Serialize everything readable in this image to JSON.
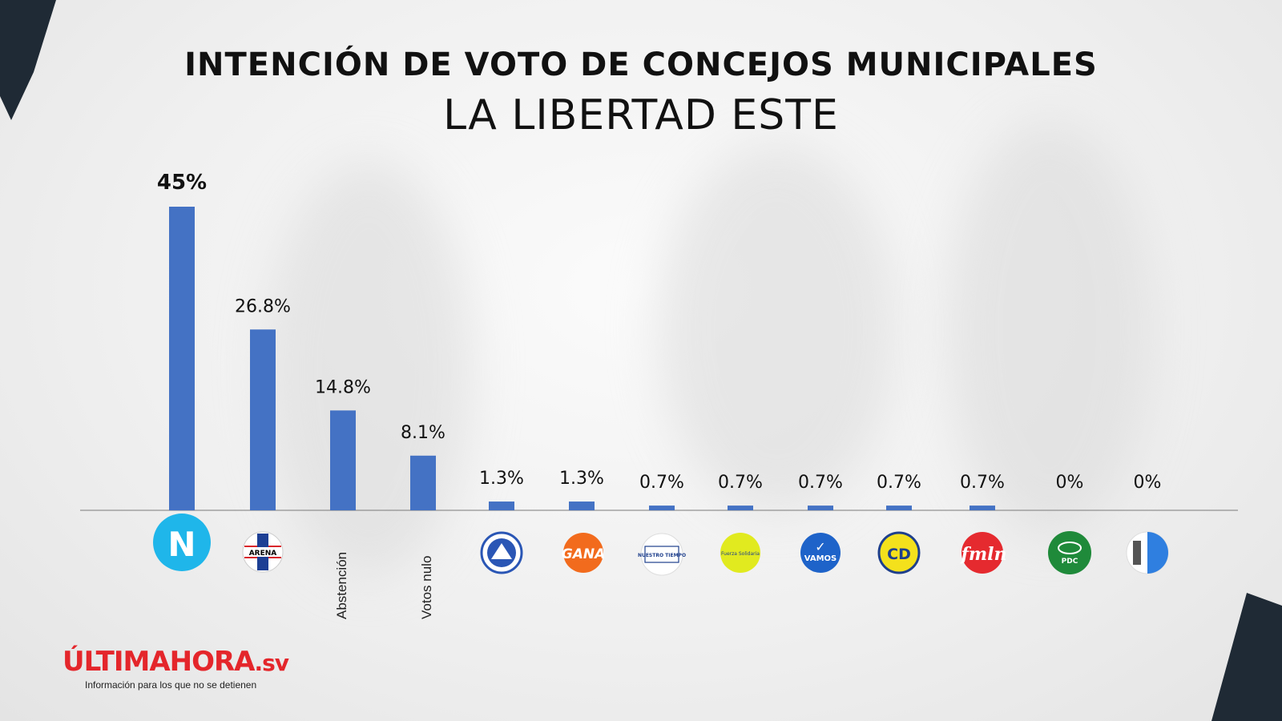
{
  "chart_data": {
    "type": "bar",
    "title": "INTENCIÓN DE VOTO DE CONCEJOS MUNICIPALES",
    "subtitle": "LA LIBERTAD ESTE",
    "categories": [
      "N",
      "ARENA",
      "Abstención",
      "Votos nulo",
      "PCN",
      "GANA",
      "NUESTRO TIEMPO",
      "Fuerza Solidaria",
      "VAMOS",
      "CD",
      "FMLN",
      "PDC",
      "DS"
    ],
    "values": [
      45,
      26.8,
      14.8,
      8.1,
      1.3,
      1.3,
      0.7,
      0.7,
      0.7,
      0.7,
      0.7,
      0,
      0
    ],
    "value_labels": [
      "45%",
      "26.8%",
      "14.8%",
      "8.1%",
      "1.3%",
      "1.3%",
      "0.7%",
      "0.7%",
      "0.7%",
      "0.7%",
      "0.7%",
      "0%",
      "0%"
    ],
    "ylim": [
      0,
      45
    ],
    "bar_color": "#4472c4",
    "grid": false,
    "legend": "none"
  },
  "logos": {
    "n_text": "N",
    "arena_text": "ARENA",
    "gana_text": "GANA",
    "nuestro_tiempo_text": "NUESTRO TIEMPO",
    "fuerza_text": "Fuerza Solidaria",
    "vamos_text": "VAMOS",
    "cd_text": "CD",
    "fmln_text": "fmln",
    "pdc_text": "PDC"
  },
  "brand": {
    "part1": "ÚLTIMA",
    "part2": "HORA",
    "part3": ".sv",
    "tagline": "Información para los que no se detienen"
  },
  "colors": {
    "n_logo": "#1fb6ea",
    "vamos": "#1e63c9",
    "cd": "#f4e11c",
    "fmln": "#e52a2f",
    "pdc": "#1f8a3a",
    "gana": "#f26b1d",
    "pcn": "#2a56b5",
    "fuerza": "#e1ea1f"
  }
}
